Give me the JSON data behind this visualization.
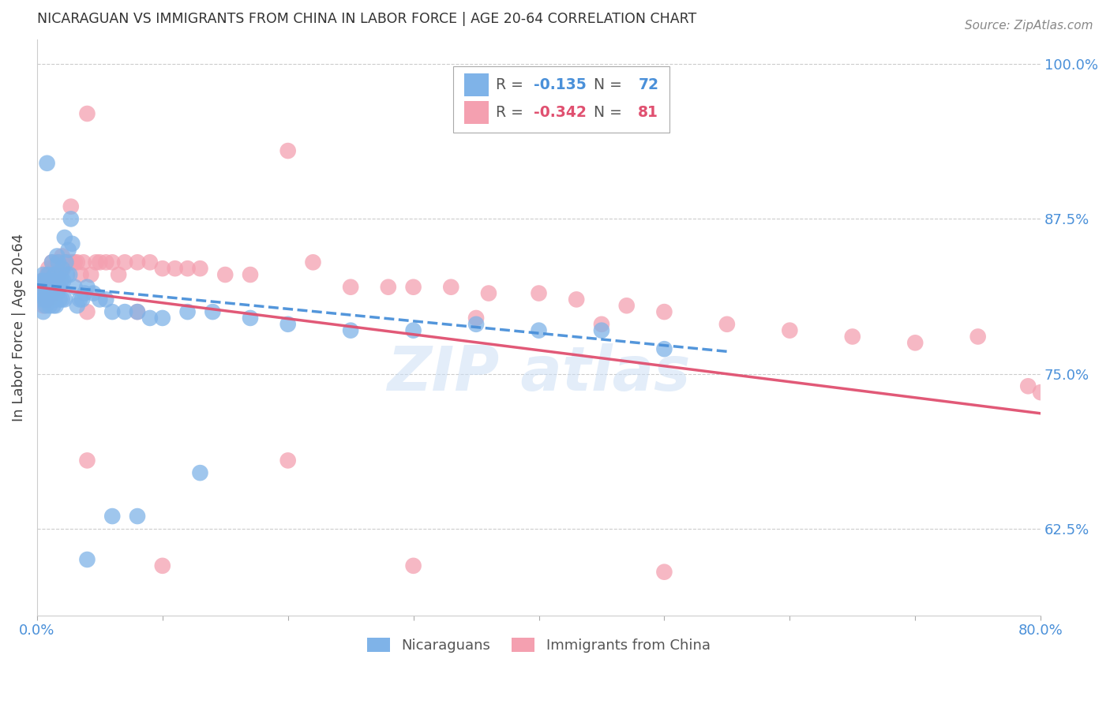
{
  "title": "NICARAGUAN VS IMMIGRANTS FROM CHINA IN LABOR FORCE | AGE 20-64 CORRELATION CHART",
  "source": "Source: ZipAtlas.com",
  "ylabel": "In Labor Force | Age 20-64",
  "xlim": [
    0.0,
    0.8
  ],
  "ylim": [
    0.555,
    1.02
  ],
  "yticks_right": [
    0.625,
    0.75,
    0.875,
    1.0
  ],
  "ytick_right_labels": [
    "62.5%",
    "75.0%",
    "87.5%",
    "100.0%"
  ],
  "background_color": "#ffffff",
  "grid_color": "#cccccc",
  "blue_color": "#7fb3e8",
  "pink_color": "#f4a0b0",
  "blue_line_color": "#4a90d9",
  "pink_line_color": "#e05070",
  "right_axis_color": "#4a90d9",
  "legend_R1": "-0.135",
  "legend_N1": "72",
  "legend_R2": "-0.342",
  "legend_N2": "81",
  "blue_trend_x0": 0.0,
  "blue_trend_x1": 0.55,
  "blue_trend_y0": 0.822,
  "blue_trend_y1": 0.768,
  "pink_trend_x0": 0.0,
  "pink_trend_x1": 0.8,
  "pink_trend_y0": 0.82,
  "pink_trend_y1": 0.718,
  "blue_x": [
    0.002,
    0.003,
    0.004,
    0.004,
    0.005,
    0.005,
    0.006,
    0.006,
    0.007,
    0.007,
    0.008,
    0.008,
    0.009,
    0.009,
    0.01,
    0.01,
    0.011,
    0.011,
    0.012,
    0.012,
    0.013,
    0.013,
    0.014,
    0.014,
    0.015,
    0.015,
    0.016,
    0.016,
    0.017,
    0.017,
    0.018,
    0.018,
    0.019,
    0.02,
    0.02,
    0.021,
    0.022,
    0.022,
    0.023,
    0.024,
    0.025,
    0.026,
    0.027,
    0.028,
    0.03,
    0.032,
    0.034,
    0.036,
    0.038,
    0.04,
    0.045,
    0.05,
    0.055,
    0.06,
    0.07,
    0.08,
    0.09,
    0.1,
    0.12,
    0.14,
    0.17,
    0.2,
    0.25,
    0.3,
    0.35,
    0.4,
    0.45,
    0.5,
    0.13,
    0.08,
    0.06,
    0.04
  ],
  "blue_y": [
    0.82,
    0.815,
    0.825,
    0.81,
    0.83,
    0.8,
    0.825,
    0.81,
    0.82,
    0.805,
    0.92,
    0.815,
    0.83,
    0.81,
    0.825,
    0.805,
    0.825,
    0.815,
    0.84,
    0.81,
    0.825,
    0.805,
    0.83,
    0.81,
    0.83,
    0.805,
    0.845,
    0.815,
    0.84,
    0.82,
    0.82,
    0.81,
    0.825,
    0.835,
    0.81,
    0.825,
    0.86,
    0.81,
    0.84,
    0.83,
    0.85,
    0.83,
    0.875,
    0.855,
    0.82,
    0.805,
    0.81,
    0.81,
    0.815,
    0.82,
    0.815,
    0.81,
    0.81,
    0.8,
    0.8,
    0.8,
    0.795,
    0.795,
    0.8,
    0.8,
    0.795,
    0.79,
    0.785,
    0.785,
    0.79,
    0.785,
    0.785,
    0.77,
    0.67,
    0.635,
    0.635,
    0.6
  ],
  "pink_x": [
    0.002,
    0.003,
    0.004,
    0.005,
    0.005,
    0.006,
    0.007,
    0.007,
    0.008,
    0.008,
    0.009,
    0.009,
    0.01,
    0.01,
    0.011,
    0.011,
    0.012,
    0.012,
    0.013,
    0.014,
    0.015,
    0.015,
    0.016,
    0.017,
    0.018,
    0.019,
    0.02,
    0.021,
    0.022,
    0.023,
    0.024,
    0.025,
    0.027,
    0.028,
    0.03,
    0.032,
    0.035,
    0.037,
    0.04,
    0.043,
    0.047,
    0.05,
    0.055,
    0.06,
    0.065,
    0.07,
    0.08,
    0.09,
    0.1,
    0.11,
    0.12,
    0.13,
    0.15,
    0.17,
    0.2,
    0.22,
    0.25,
    0.28,
    0.3,
    0.33,
    0.36,
    0.4,
    0.43,
    0.47,
    0.5,
    0.55,
    0.6,
    0.65,
    0.7,
    0.75,
    0.79,
    0.8,
    0.04,
    0.08,
    0.35,
    0.45,
    0.04,
    0.2,
    0.1,
    0.3,
    0.5
  ],
  "pink_y": [
    0.82,
    0.815,
    0.825,
    0.82,
    0.805,
    0.825,
    0.82,
    0.81,
    0.83,
    0.81,
    0.835,
    0.815,
    0.83,
    0.81,
    0.83,
    0.815,
    0.84,
    0.815,
    0.835,
    0.83,
    0.835,
    0.815,
    0.84,
    0.83,
    0.84,
    0.83,
    0.845,
    0.835,
    0.84,
    0.84,
    0.84,
    0.84,
    0.885,
    0.84,
    0.84,
    0.84,
    0.83,
    0.84,
    0.96,
    0.83,
    0.84,
    0.84,
    0.84,
    0.84,
    0.83,
    0.84,
    0.84,
    0.84,
    0.835,
    0.835,
    0.835,
    0.835,
    0.83,
    0.83,
    0.93,
    0.84,
    0.82,
    0.82,
    0.82,
    0.82,
    0.815,
    0.815,
    0.81,
    0.805,
    0.8,
    0.79,
    0.785,
    0.78,
    0.775,
    0.78,
    0.74,
    0.735,
    0.8,
    0.8,
    0.795,
    0.79,
    0.68,
    0.68,
    0.595,
    0.595,
    0.59
  ]
}
